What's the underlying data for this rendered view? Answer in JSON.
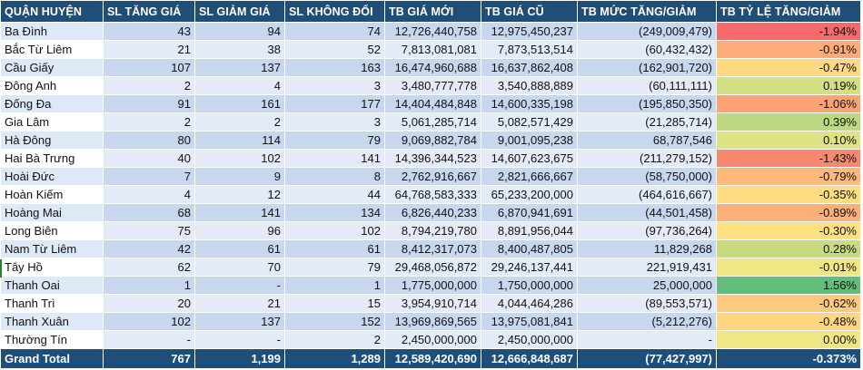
{
  "headers": {
    "district": "QUẬN HUYỆN",
    "up_count": "SL TĂNG GIÁ",
    "down_count": "SL GIẢM GIÁ",
    "same_count": "SL KHÔNG ĐỔI",
    "avg_new": "TB GIÁ MỚI",
    "avg_old": "TB GIÁ CŨ",
    "avg_change": "TB MỨC TĂNG/GIẢM",
    "avg_pct": "TB TỶ LỆ TĂNG/GIẢM"
  },
  "rows": [
    {
      "district": "Ba Đình",
      "up": "43",
      "down": "94",
      "same": "74",
      "avg_new": "12,726,440,758",
      "avg_old": "12,975,450,237",
      "change": "(249,009,479)",
      "pct": "-1.94%",
      "pct_value": -1.94,
      "color": "#f8696b"
    },
    {
      "district": "Bắc Từ Liêm",
      "up": "21",
      "down": "38",
      "same": "52",
      "avg_new": "7,813,081,081",
      "avg_old": "7,873,513,514",
      "change": "(60,432,432)",
      "pct": "-0.91%",
      "pct_value": -0.91,
      "color": "#fcac78"
    },
    {
      "district": "Cầu Giấy",
      "up": "107",
      "down": "137",
      "same": "163",
      "avg_new": "16,474,960,688",
      "avg_old": "16,637,862,408",
      "change": "(162,901,720)",
      "pct": "-0.47%",
      "pct_value": -0.47,
      "color": "#fed981"
    },
    {
      "district": "Đông Anh",
      "up": "2",
      "down": "4",
      "same": "3",
      "avg_new": "3,480,777,778",
      "avg_old": "3,540,888,889",
      "change": "(60,111,111)",
      "pct": "0.19%",
      "pct_value": 0.19,
      "color": "#d2df82"
    },
    {
      "district": "Đống Đa",
      "up": "91",
      "down": "161",
      "same": "177",
      "avg_new": "14,404,484,848",
      "avg_old": "14,600,335,198",
      "change": "(195,850,350)",
      "pct": "-1.06%",
      "pct_value": -1.06,
      "color": "#fba276"
    },
    {
      "district": "Gia Lâm",
      "up": "2",
      "down": "2",
      "same": "3",
      "avg_new": "5,061,285,714",
      "avg_old": "5,082,571,429",
      "change": "(21,285,714)",
      "pct": "0.39%",
      "pct_value": 0.39,
      "color": "#bcd881"
    },
    {
      "district": "Hà Đông",
      "up": "80",
      "down": "114",
      "same": "79",
      "avg_new": "9,069,882,784",
      "avg_old": "9,001,095,238",
      "change": "68,787,546",
      "pct": "0.10%",
      "pct_value": 0.1,
      "color": "#dde283"
    },
    {
      "district": "Hai Bà Trưng",
      "up": "40",
      "down": "102",
      "same": "141",
      "avg_new": "14,396,344,523",
      "avg_old": "14,607,623,675",
      "change": "(211,279,152)",
      "pct": "-1.43%",
      "pct_value": -1.43,
      "color": "#f98871"
    },
    {
      "district": "Hoài Đức",
      "up": "7",
      "down": "9",
      "same": "8",
      "avg_new": "2,762,916,667",
      "avg_old": "2,821,666,667",
      "change": "(58,750,000)",
      "pct": "-0.79%",
      "pct_value": -0.79,
      "color": "#fdb87b"
    },
    {
      "district": "Hoàn Kiếm",
      "up": "4",
      "down": "12",
      "same": "44",
      "avg_new": "64,768,583,333",
      "avg_old": "65,233,200,000",
      "change": "(464,616,667)",
      "pct": "-0.35%",
      "pct_value": -0.35,
      "color": "#fedc81"
    },
    {
      "district": "Hoàng Mai",
      "up": "68",
      "down": "141",
      "same": "134",
      "avg_new": "6,826,440,233",
      "avg_old": "6,870,941,691",
      "change": "(44,501,458)",
      "pct": "-0.89%",
      "pct_value": -0.89,
      "color": "#fcaf79"
    },
    {
      "district": "Long Biên",
      "up": "75",
      "down": "96",
      "same": "102",
      "avg_new": "8,794,219,780",
      "avg_old": "8,891,956,044",
      "change": "(97,736,264)",
      "pct": "-0.30%",
      "pct_value": -0.3,
      "color": "#ffe083"
    },
    {
      "district": "Nam Từ Liêm",
      "up": "42",
      "down": "61",
      "same": "61",
      "avg_new": "8,412,317,073",
      "avg_old": "8,400,487,805",
      "change": "11,829,268",
      "pct": "0.28%",
      "pct_value": 0.28,
      "color": "#c8db81"
    },
    {
      "district": "Tây Hồ",
      "up": "62",
      "down": "70",
      "same": "79",
      "avg_new": "29,468,056,872",
      "avg_old": "29,246,137,441",
      "change": "221,919,431",
      "pct": "-0.01%",
      "pct_value": -0.01,
      "color": "#f0e684"
    },
    {
      "district": "Thanh Oai",
      "up": "1",
      "down": "-",
      "same": "1",
      "avg_new": "1,775,000,000",
      "avg_old": "1,750,000,000",
      "change": "25,000,000",
      "pct": "1.56%",
      "pct_value": 1.56,
      "color": "#63be7b"
    },
    {
      "district": "Thanh Trì",
      "up": "20",
      "down": "21",
      "same": "15",
      "avg_new": "3,954,910,714",
      "avg_old": "4,044,464,286",
      "change": "(89,553,571)",
      "pct": "-0.62%",
      "pct_value": -0.62,
      "color": "#fdc97e"
    },
    {
      "district": "Thanh Xuân",
      "up": "102",
      "down": "137",
      "same": "152",
      "avg_new": "13,969,869,565",
      "avg_old": "13,975,081,841",
      "change": "(5,212,276)",
      "pct": "-0.48%",
      "pct_value": -0.48,
      "color": "#fed580"
    },
    {
      "district": "Thường Tín",
      "up": "-",
      "down": "-",
      "same": "2",
      "avg_new": "2,450,000,000",
      "avg_old": "2,450,000,000",
      "change": "-",
      "pct": "0.00%",
      "pct_value": 0.0,
      "color": "#f0e784"
    }
  ],
  "total": {
    "label": "Grand Total",
    "up": "767",
    "down": "1,199",
    "same": "1,289",
    "avg_new": "12,589,420,690",
    "avg_old": "12,666,848,687",
    "change": "(77,427,997)",
    "pct": "-0.373%"
  },
  "colors": {
    "header_bg": "#1f4e79",
    "header_text": "#ffffff",
    "band_dark": "#c7d7ee",
    "band_light": "#e2ebf7"
  }
}
